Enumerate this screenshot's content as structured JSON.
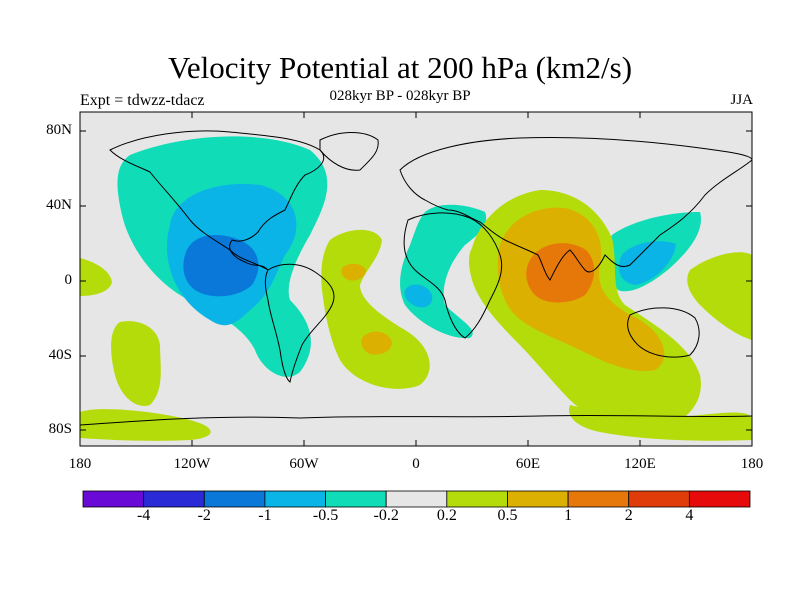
{
  "map": {
    "title": "Velocity Potential at 200 hPa (km2/s)",
    "subtitle": "028kyr BP - 028kyr BP",
    "left_label": "Expt = tdwzz-tdacz",
    "right_label": "JJA",
    "lat_labels": [
      "80N",
      "40N",
      "0",
      "40S",
      "80S"
    ],
    "lon_labels": [
      "180",
      "120W",
      "60W",
      "0",
      "60E",
      "120E",
      "180"
    ]
  },
  "colorbar": {
    "labels": [
      "-4",
      "-2",
      "-1",
      "-0.5",
      "-0.2",
      "0.2",
      "0.5",
      "1",
      "2",
      "4"
    ],
    "colors": [
      "#6a0ad6",
      "#2a2ad6",
      "#0a78d8",
      "#0ab4e6",
      "#10dcb8",
      "#e6e6e6",
      "#b4dc0a",
      "#dcb000",
      "#e6780a",
      "#e03c0a",
      "#e60a0a"
    ]
  },
  "colors": {
    "ocean_background": "#e6e6e6",
    "coast": "#000000"
  }
}
